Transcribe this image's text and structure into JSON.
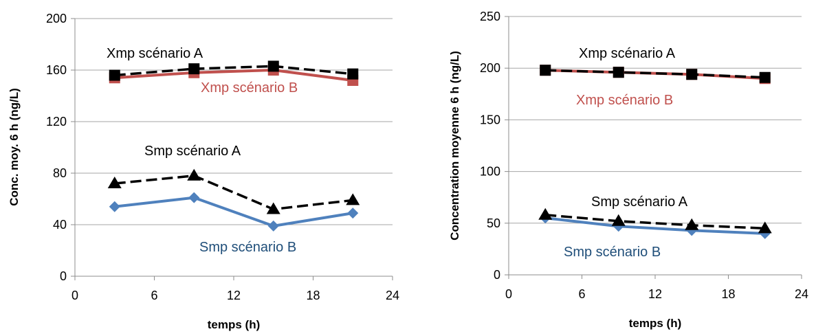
{
  "chart_data": [
    {
      "type": "line",
      "xlabel": "temps (h)",
      "ylabel": "Conc. moy. 6 h (ng/L)",
      "xlim": [
        0,
        24
      ],
      "ylim": [
        0,
        200
      ],
      "xticks": [
        "0",
        "6",
        "12",
        "18",
        "24"
      ],
      "yticks": [
        "0",
        "40",
        "80",
        "120",
        "160",
        "200"
      ],
      "grid": "horizontal",
      "x": [
        3,
        9,
        15,
        21
      ],
      "series": [
        {
          "name": "Xmp scénario B",
          "values": [
            154,
            158,
            160,
            152
          ],
          "color": "#c0504d",
          "style": "solid",
          "marker": "square"
        },
        {
          "name": "Xmp scénario A",
          "values": [
            156,
            161,
            163,
            157
          ],
          "color": "#000000",
          "style": "dashed",
          "marker": "square"
        },
        {
          "name": "Smp scénario B",
          "values": [
            54,
            61,
            39,
            49
          ],
          "color": "#4f81bd",
          "style": "solid",
          "marker": "diamond"
        },
        {
          "name": "Smp scénario A",
          "values": [
            72,
            78,
            52,
            59
          ],
          "color": "#000000",
          "style": "dashed",
          "marker": "triangle"
        }
      ],
      "annotations": [
        {
          "text": "Xmp scénario A",
          "color": "#000000"
        },
        {
          "text": "Xmp scénario B",
          "color": "#c0504d"
        },
        {
          "text": "Smp scénario A",
          "color": "#000000"
        },
        {
          "text": "Smp scénario B",
          "color": "#1f4e79"
        }
      ]
    },
    {
      "type": "line",
      "xlabel": "temps (h)",
      "ylabel": "Concentration moyenne 6 h (ng/L)",
      "xlim": [
        0,
        24
      ],
      "ylim": [
        0,
        250
      ],
      "xticks": [
        "0",
        "6",
        "12",
        "18",
        "24"
      ],
      "yticks": [
        "0",
        "50",
        "100",
        "150",
        "200",
        "250"
      ],
      "grid": "horizontal",
      "x": [
        3,
        9,
        15,
        21
      ],
      "series": [
        {
          "name": "Xmp scénario B",
          "values": [
            198,
            196,
            194,
            190
          ],
          "color": "#c0504d",
          "style": "solid",
          "marker": "square"
        },
        {
          "name": "Xmp scénario A",
          "values": [
            198,
            196,
            194,
            191
          ],
          "color": "#000000",
          "style": "dashed",
          "marker": "square"
        },
        {
          "name": "Smp scénario B",
          "values": [
            55,
            47,
            43,
            40
          ],
          "color": "#4f81bd",
          "style": "solid",
          "marker": "diamond"
        },
        {
          "name": "Smp scénario A",
          "values": [
            58,
            52,
            48,
            45
          ],
          "color": "#000000",
          "style": "dashed",
          "marker": "triangle"
        }
      ],
      "annotations": [
        {
          "text": "Xmp scénario A",
          "color": "#000000"
        },
        {
          "text": "Xmp scénario B",
          "color": "#c0504d"
        },
        {
          "text": "Smp scénario A",
          "color": "#000000"
        },
        {
          "text": "Smp scénario B",
          "color": "#1f4e79"
        }
      ]
    }
  ]
}
